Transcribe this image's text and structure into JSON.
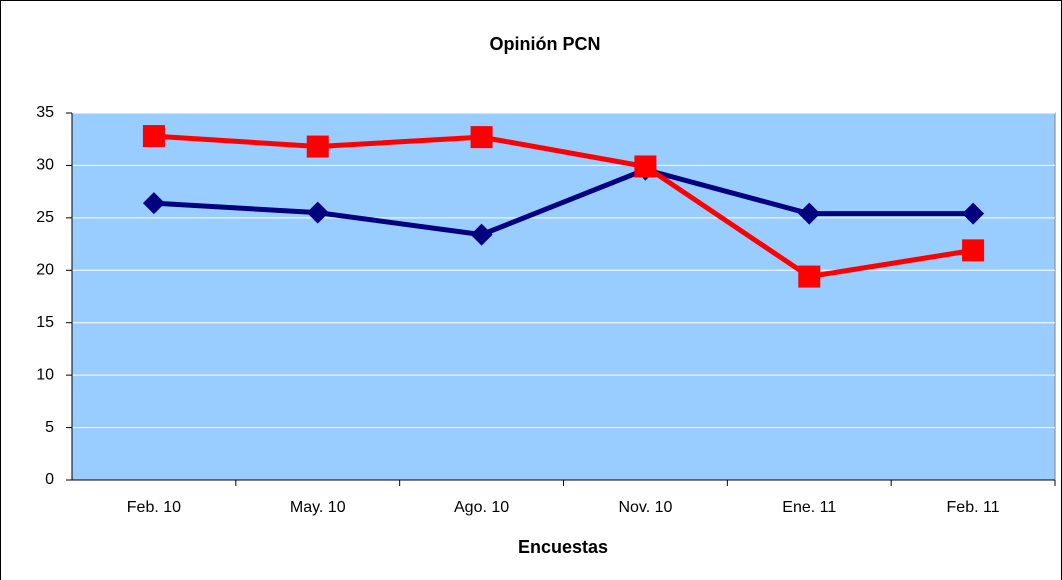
{
  "chart_data": {
    "type": "line",
    "title": "Opinión PCN",
    "x_label": "Encuestas",
    "categories": [
      "Feb. 10",
      "May. 10",
      "Ago. 10",
      "Nov. 10",
      "Ene. 11",
      "Feb. 11"
    ],
    "series": [
      {
        "color": "#000080",
        "marker": "diamond",
        "values": [
          26.4,
          25.5,
          23.4,
          29.6,
          25.4,
          25.4
        ]
      },
      {
        "color": "#ff0000",
        "marker": "square",
        "values": [
          32.8,
          31.8,
          32.7,
          29.9,
          19.4,
          21.9
        ]
      }
    ],
    "ylim": [
      0,
      35
    ],
    "yticks": [
      0,
      5,
      10,
      15,
      20,
      25,
      30,
      35
    ],
    "grid": true,
    "plot_background": "#99ccff"
  }
}
